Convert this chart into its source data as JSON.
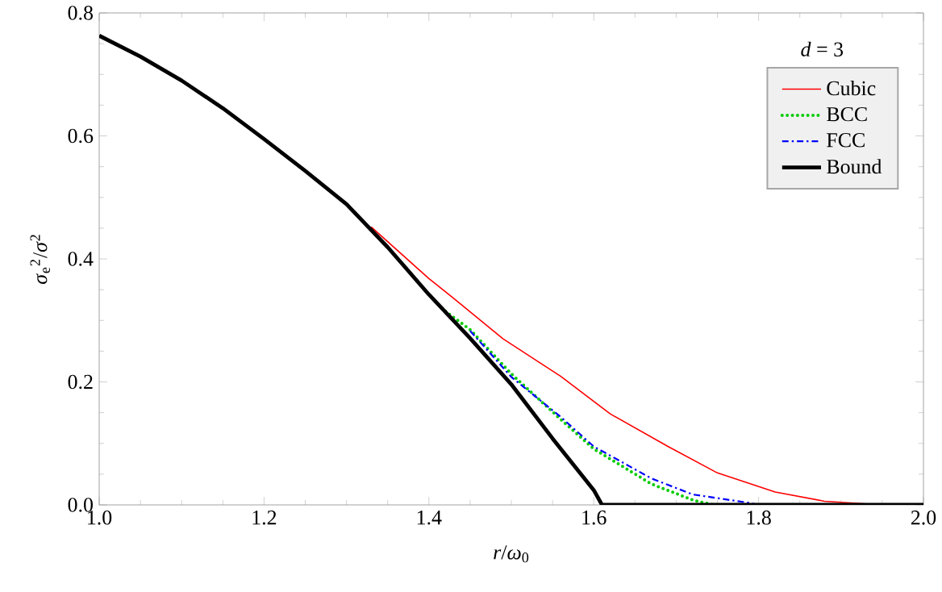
{
  "chart_data": {
    "type": "line",
    "xlabel": "*r*/*ω*$_{0}$",
    "ylabel": "*σ*$_{e}$$^{2}$/*σ*$^{2}$",
    "legend_title": "*d* = 3",
    "xlim": [
      1.0,
      2.0
    ],
    "ylim": [
      0.0,
      0.8
    ],
    "xticks": [
      {
        "value": 1.0,
        "label": "1.0"
      },
      {
        "value": 1.2,
        "label": "1.2"
      },
      {
        "value": 1.4,
        "label": "1.4"
      },
      {
        "value": 1.6,
        "label": "1.6"
      },
      {
        "value": 1.8,
        "label": "1.8"
      },
      {
        "value": 2.0,
        "label": "2.0"
      }
    ],
    "yticks": [
      {
        "value": 0.0,
        "label": "0.0"
      },
      {
        "value": 0.2,
        "label": "0.2"
      },
      {
        "value": 0.4,
        "label": "0.4"
      },
      {
        "value": 0.6,
        "label": "0.6"
      },
      {
        "value": 0.8,
        "label": "0.8"
      }
    ],
    "legend": "top right",
    "grid": false,
    "series": [
      {
        "name": "Cubic",
        "color": "#ff0000",
        "line_style": "solid",
        "x": [
          1.33,
          1.35,
          1.4,
          1.43,
          1.49,
          1.56,
          1.62,
          1.69,
          1.75,
          1.82,
          1.88,
          1.95,
          2.0
        ],
        "values": [
          0.452,
          0.428,
          0.368,
          0.336,
          0.27,
          0.209,
          0.148,
          0.095,
          0.052,
          0.021,
          0.006,
          0.0,
          0.0
        ]
      },
      {
        "name": "BCC",
        "color": "#00cc00",
        "line_style": "dotted",
        "x": [
          1.42,
          1.45,
          1.5,
          1.56,
          1.6,
          1.67,
          1.72,
          1.745
        ],
        "values": [
          0.315,
          0.285,
          0.213,
          0.139,
          0.091,
          0.034,
          0.008,
          0.0
        ]
      },
      {
        "name": "FCC",
        "color": "#0000ff",
        "line_style": "dashdot",
        "x": [
          1.45,
          1.5,
          1.56,
          1.6,
          1.67,
          1.72,
          1.79,
          1.8
        ],
        "values": [
          0.283,
          0.208,
          0.143,
          0.095,
          0.043,
          0.017,
          0.003,
          0.0
        ]
      },
      {
        "name": "Bound",
        "color": "#000000",
        "line_style": "solid",
        "x": [
          1.0,
          1.05,
          1.1,
          1.15,
          1.2,
          1.25,
          1.3,
          1.35,
          1.4,
          1.45,
          1.5,
          1.55,
          1.6,
          1.61,
          2.0
        ],
        "values": [
          0.763,
          0.729,
          0.69,
          0.645,
          0.595,
          0.543,
          0.489,
          0.419,
          0.342,
          0.271,
          0.196,
          0.108,
          0.024,
          0.0,
          0.0
        ]
      }
    ]
  }
}
